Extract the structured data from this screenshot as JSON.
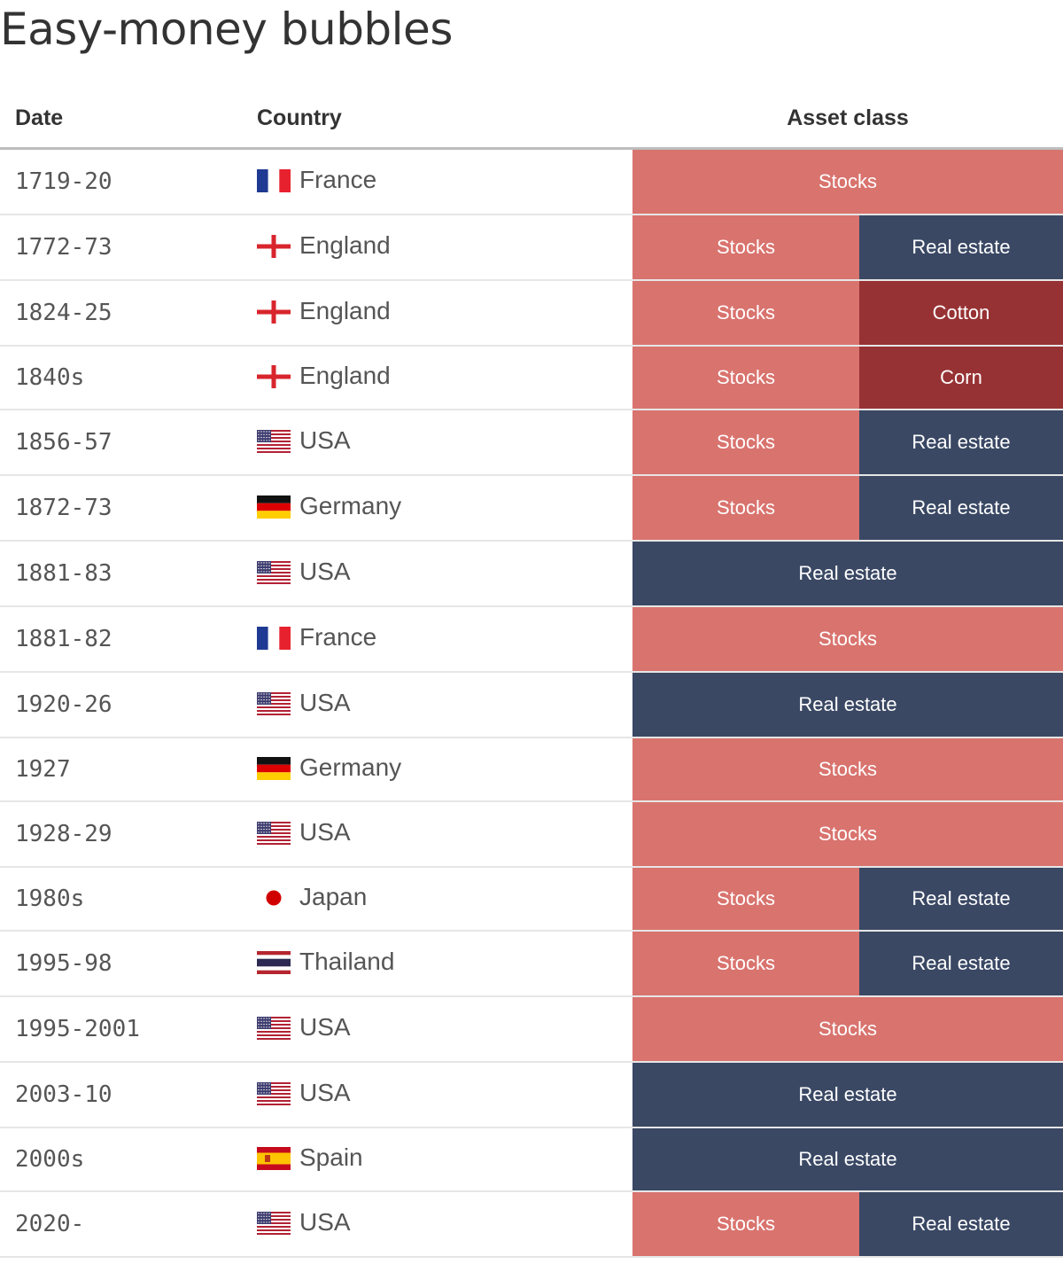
{
  "title": "Easy-money bubbles",
  "headers": {
    "date": "Date",
    "country": "Country",
    "asset_class": "Asset class"
  },
  "colors": {
    "stocks": "#d9736e",
    "real_estate": "#3a4864",
    "commodity": "#973234"
  },
  "rows": [
    {
      "date": "1719-20",
      "country": "France",
      "flag": "france-flag-icon",
      "assets": [
        {
          "label": "Stocks",
          "kind": "stocks"
        }
      ]
    },
    {
      "date": "1772-73",
      "country": "England",
      "flag": "england-flag-icon",
      "assets": [
        {
          "label": "Stocks",
          "kind": "stocks"
        },
        {
          "label": "Real estate",
          "kind": "real_estate"
        }
      ]
    },
    {
      "date": "1824-25",
      "country": "England",
      "flag": "england-flag-icon",
      "assets": [
        {
          "label": "Stocks",
          "kind": "stocks"
        },
        {
          "label": "Cotton",
          "kind": "commodity"
        }
      ]
    },
    {
      "date": "1840s",
      "country": "England",
      "flag": "england-flag-icon",
      "assets": [
        {
          "label": "Stocks",
          "kind": "stocks"
        },
        {
          "label": "Corn",
          "kind": "commodity"
        }
      ]
    },
    {
      "date": "1856-57",
      "country": "USA",
      "flag": "usa-flag-icon",
      "assets": [
        {
          "label": "Stocks",
          "kind": "stocks"
        },
        {
          "label": "Real estate",
          "kind": "real_estate"
        }
      ]
    },
    {
      "date": "1872-73",
      "country": "Germany",
      "flag": "germany-flag-icon",
      "assets": [
        {
          "label": "Stocks",
          "kind": "stocks"
        },
        {
          "label": "Real estate",
          "kind": "real_estate"
        }
      ]
    },
    {
      "date": "1881-83",
      "country": "USA",
      "flag": "usa-flag-icon",
      "assets": [
        {
          "label": "Real estate",
          "kind": "real_estate"
        }
      ]
    },
    {
      "date": "1881-82",
      "country": "France",
      "flag": "france-flag-icon",
      "assets": [
        {
          "label": "Stocks",
          "kind": "stocks"
        }
      ]
    },
    {
      "date": "1920-26",
      "country": "USA",
      "flag": "usa-flag-icon",
      "assets": [
        {
          "label": "Real estate",
          "kind": "real_estate"
        }
      ]
    },
    {
      "date": "1927",
      "country": "Germany",
      "flag": "germany-flag-icon",
      "assets": [
        {
          "label": "Stocks",
          "kind": "stocks"
        }
      ]
    },
    {
      "date": "1928-29",
      "country": "USA",
      "flag": "usa-flag-icon",
      "assets": [
        {
          "label": "Stocks",
          "kind": "stocks"
        }
      ]
    },
    {
      "date": "1980s",
      "country": "Japan",
      "flag": "japan-flag-icon",
      "assets": [
        {
          "label": "Stocks",
          "kind": "stocks"
        },
        {
          "label": "Real estate",
          "kind": "real_estate"
        }
      ]
    },
    {
      "date": "1995-98",
      "country": "Thailand",
      "flag": "thailand-flag-icon",
      "assets": [
        {
          "label": "Stocks",
          "kind": "stocks"
        },
        {
          "label": "Real estate",
          "kind": "real_estate"
        }
      ]
    },
    {
      "date": "1995-2001",
      "country": "USA",
      "flag": "usa-flag-icon",
      "assets": [
        {
          "label": "Stocks",
          "kind": "stocks"
        }
      ]
    },
    {
      "date": "2003-10",
      "country": "USA",
      "flag": "usa-flag-icon",
      "assets": [
        {
          "label": "Real estate",
          "kind": "real_estate"
        }
      ]
    },
    {
      "date": "2000s",
      "country": "Spain",
      "flag": "spain-flag-icon",
      "assets": [
        {
          "label": "Real estate",
          "kind": "real_estate"
        }
      ]
    },
    {
      "date": "2020-",
      "country": "USA",
      "flag": "usa-flag-icon",
      "assets": [
        {
          "label": "Stocks",
          "kind": "stocks"
        },
        {
          "label": "Real estate",
          "kind": "real_estate"
        }
      ]
    }
  ]
}
